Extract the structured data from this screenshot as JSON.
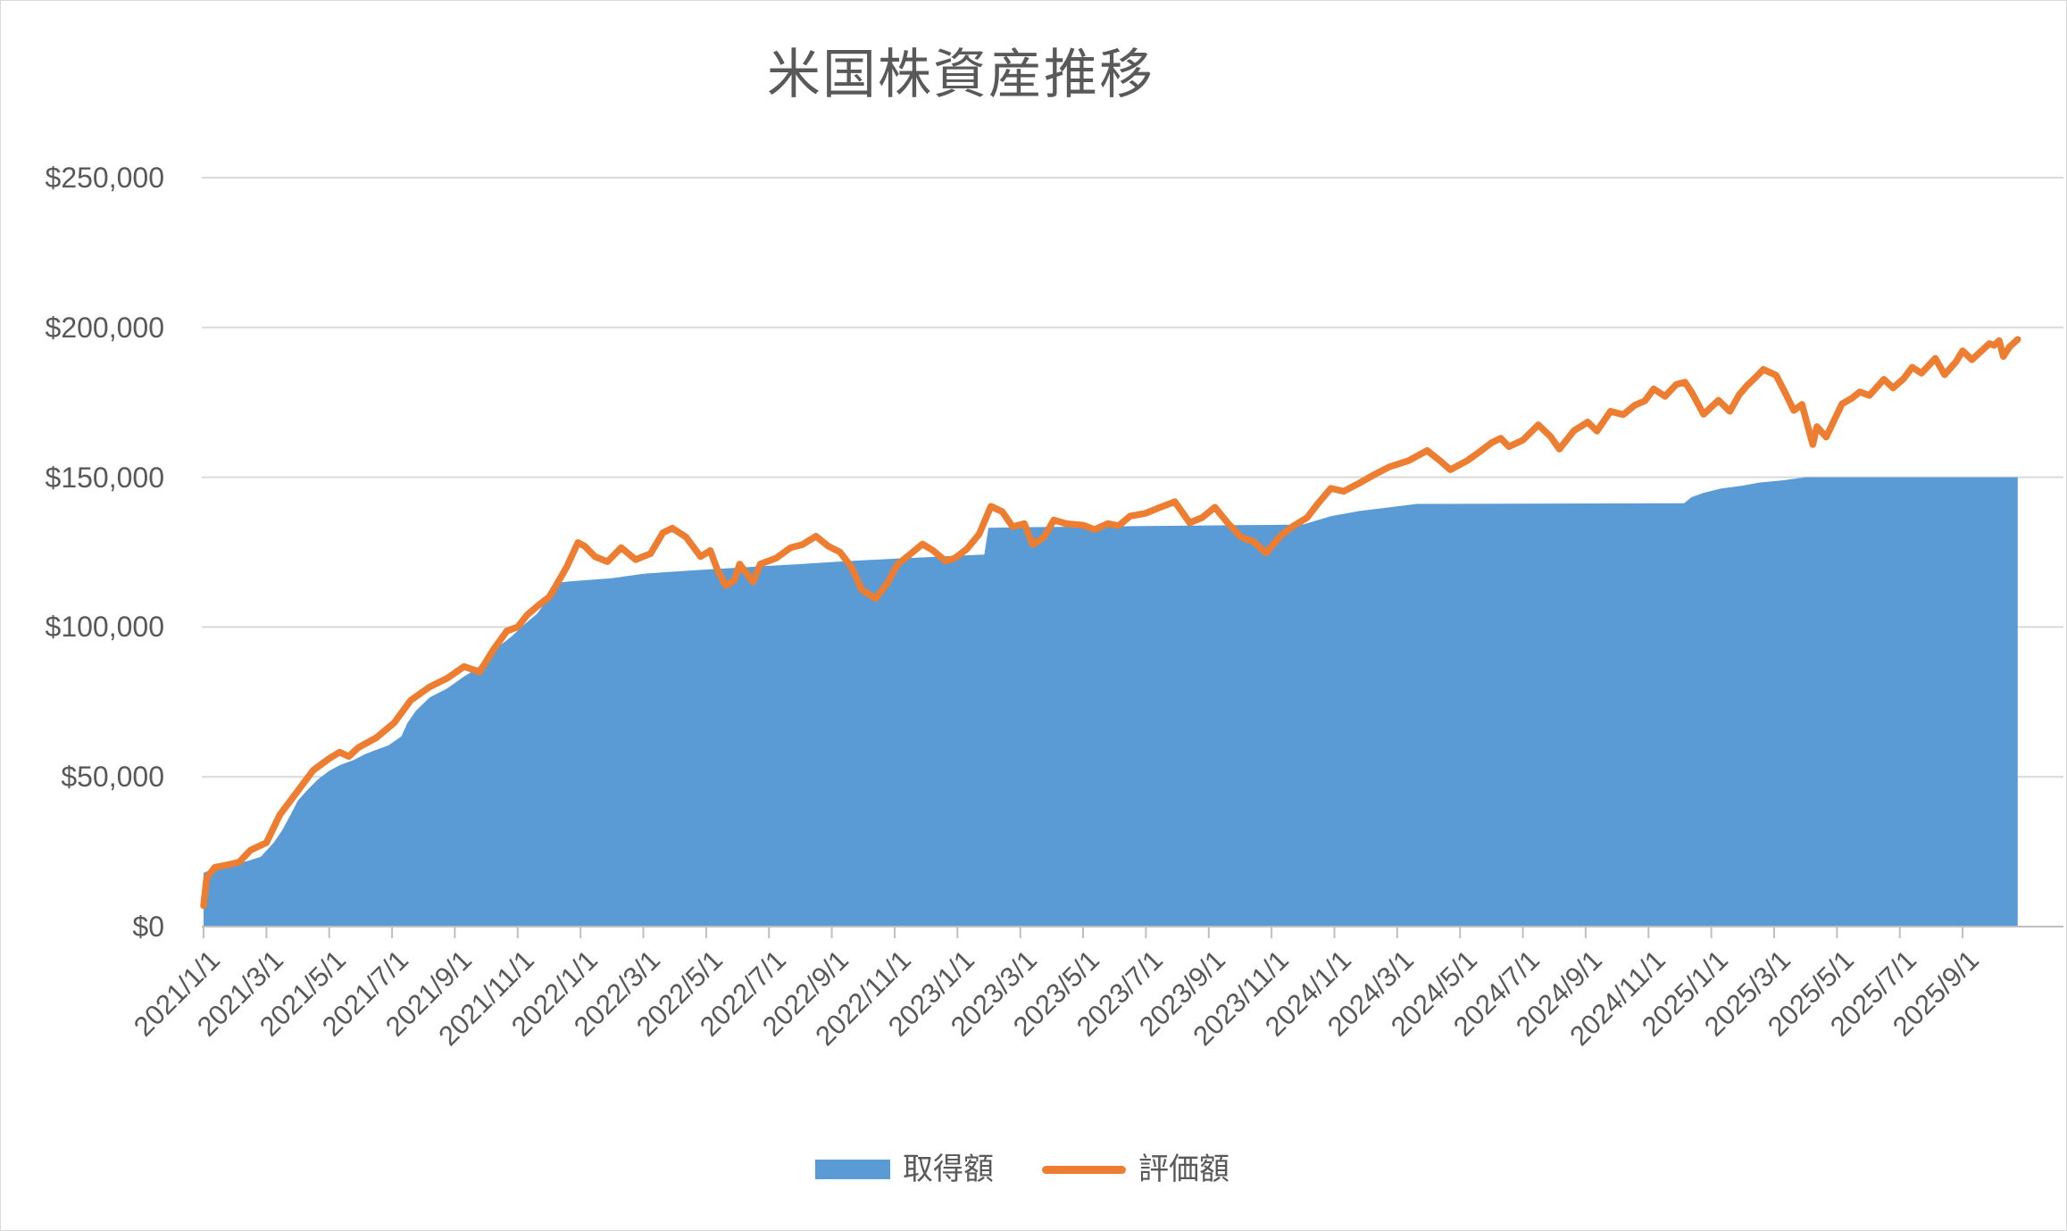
{
  "chart_data": {
    "type": "line",
    "title": "米国株資産推移",
    "grid": true,
    "legend_position": "bottom",
    "colors": {
      "area_series": "#5B9BD5",
      "line_series": "#ED7D31",
      "gridline": "#D9D9D9",
      "axis": "#BFBFBF",
      "text": "#595959",
      "border": "#D9D9D9"
    },
    "y_axis": {
      "min": 0,
      "max": 250000,
      "step": 50000,
      "format": "$#,##0",
      "ticks": [
        {
          "label": "$0",
          "value": 0
        },
        {
          "label": "$50,000",
          "value": 50000
        },
        {
          "label": "$100,000",
          "value": 100000
        },
        {
          "label": "$150,000",
          "value": 150000
        },
        {
          "label": "$200,000",
          "value": 200000
        },
        {
          "label": "$250,000",
          "value": 250000
        }
      ]
    },
    "x_axis": {
      "start": "2021/1/1",
      "end": "2025/10/24",
      "tick_labels": [
        "2021/1/1",
        "2021/3/1",
        "2021/5/1",
        "2021/7/1",
        "2021/9/1",
        "2021/11/1",
        "2022/1/1",
        "2022/3/1",
        "2022/5/1",
        "2022/7/1",
        "2022/9/1",
        "2022/11/1",
        "2023/1/1",
        "2023/3/1",
        "2023/5/1",
        "2023/7/1",
        "2023/9/1",
        "2023/11/1",
        "2024/1/1",
        "2024/3/1",
        "2024/5/1",
        "2024/7/1",
        "2024/9/1",
        "2024/11/1",
        "2025/1/1",
        "2025/3/1",
        "2025/5/1",
        "2025/7/1",
        "2025/9/1"
      ]
    },
    "series": [
      {
        "name": "取得額",
        "type": "area",
        "color": "#5B9BD5",
        "points": [
          [
            "2021/1/1",
            17900
          ],
          [
            "2021/1/8",
            19000
          ],
          [
            "2021/1/20",
            19800
          ],
          [
            "2021/2/1",
            20900
          ],
          [
            "2021/2/14",
            22000
          ],
          [
            "2021/2/26",
            23300
          ],
          [
            "2021/3/8",
            28000
          ],
          [
            "2021/3/16",
            32000
          ],
          [
            "2021/3/24",
            37000
          ],
          [
            "2021/4/1",
            42000
          ],
          [
            "2021/4/10",
            45500
          ],
          [
            "2021/4/20",
            49000
          ],
          [
            "2021/5/1",
            52000
          ],
          [
            "2021/5/12",
            54000
          ],
          [
            "2021/5/24",
            55500
          ],
          [
            "2021/6/5",
            57500
          ],
          [
            "2021/6/16",
            59000
          ],
          [
            "2021/6/28",
            60500
          ],
          [
            "2021/7/10",
            63500
          ],
          [
            "2021/7/16",
            68000
          ],
          [
            "2021/7/24",
            72000
          ],
          [
            "2021/8/7",
            76500
          ],
          [
            "2021/8/24",
            79500
          ],
          [
            "2021/9/10",
            83500
          ],
          [
            "2021/9/22",
            86000
          ],
          [
            "2021/10/4",
            91000
          ],
          [
            "2021/10/15",
            94000
          ],
          [
            "2021/10/26",
            97000
          ],
          [
            "2021/11/8",
            101000
          ],
          [
            "2021/11/20",
            104500
          ],
          [
            "2021/12/1",
            110000
          ],
          [
            "2021/12/10",
            114800
          ],
          [
            "2021/12/20",
            115200
          ],
          [
            "2022/2/1",
            116300
          ],
          [
            "2022/3/1",
            117800
          ],
          [
            "2022/4/1",
            118500
          ],
          [
            "2022/5/1",
            119200
          ],
          [
            "2022/6/1",
            119800
          ],
          [
            "2022/7/1",
            120400
          ],
          [
            "2022/8/1",
            121000
          ],
          [
            "2022/9/1",
            121700
          ],
          [
            "2022/10/1",
            122300
          ],
          [
            "2022/11/1",
            122800
          ],
          [
            "2022/12/1",
            123300
          ],
          [
            "2023/1/1",
            123800
          ],
          [
            "2023/1/27",
            124200
          ],
          [
            "2023/1/31",
            133100
          ],
          [
            "2023/3/1",
            133300
          ],
          [
            "2023/6/1",
            133600
          ],
          [
            "2023/9/1",
            133900
          ],
          [
            "2023/12/1",
            134200
          ],
          [
            "2023/12/28",
            137000
          ],
          [
            "2024/1/25",
            138700
          ],
          [
            "2024/3/1",
            140300
          ],
          [
            "2024/3/20",
            141100
          ],
          [
            "2024/12/5",
            141300
          ],
          [
            "2024/12/12",
            143300
          ],
          [
            "2024/12/24",
            144800
          ],
          [
            "2025/1/10",
            146200
          ],
          [
            "2025/2/1",
            147200
          ],
          [
            "2025/2/17",
            148200
          ],
          [
            "2025/3/10",
            149000
          ],
          [
            "2025/4/1",
            150000
          ],
          [
            "2025/10/24",
            150000
          ]
        ]
      },
      {
        "name": "評価額",
        "type": "line",
        "color": "#ED7D31",
        "stroke_width": 7.5,
        "points": [
          [
            "2021/1/1",
            7000
          ],
          [
            "2021/1/4",
            16300
          ],
          [
            "2021/1/12",
            19800
          ],
          [
            "2021/1/24",
            20600
          ],
          [
            "2021/2/5",
            21500
          ],
          [
            "2021/2/16",
            25500
          ],
          [
            "2021/3/1",
            28000
          ],
          [
            "2021/3/14",
            37300
          ],
          [
            "2021/3/29",
            44200
          ],
          [
            "2021/4/16",
            52200
          ],
          [
            "2021/5/1",
            56100
          ],
          [
            "2021/5/11",
            58200
          ],
          [
            "2021/5/20",
            56800
          ],
          [
            "2021/5/29",
            59700
          ],
          [
            "2021/6/16",
            63000
          ],
          [
            "2021/7/3",
            68000
          ],
          [
            "2021/7/19",
            75500
          ],
          [
            "2021/8/7",
            80000
          ],
          [
            "2021/8/24",
            82900
          ],
          [
            "2021/9/10",
            86800
          ],
          [
            "2021/9/25",
            85000
          ],
          [
            "2021/10/8",
            92500
          ],
          [
            "2021/10/21",
            98700
          ],
          [
            "2021/11/1",
            100000
          ],
          [
            "2021/11/10",
            104000
          ],
          [
            "2021/11/22",
            107500
          ],
          [
            "2021/12/1",
            110000
          ],
          [
            "2021/12/8",
            114000
          ],
          [
            "2021/12/18",
            120000
          ],
          [
            "2021/12/29",
            128200
          ],
          [
            "2022/1/5",
            127000
          ],
          [
            "2022/1/15",
            123500
          ],
          [
            "2022/1/27",
            121800
          ],
          [
            "2022/2/10",
            126500
          ],
          [
            "2022/2/24",
            122500
          ],
          [
            "2022/3/8",
            124500
          ],
          [
            "2022/3/20",
            131500
          ],
          [
            "2022/3/29",
            133000
          ],
          [
            "2022/4/12",
            130000
          ],
          [
            "2022/4/26",
            123500
          ],
          [
            "2022/5/5",
            125500
          ],
          [
            "2022/5/12",
            119000
          ],
          [
            "2022/5/20",
            113800
          ],
          [
            "2022/5/28",
            115500
          ],
          [
            "2022/6/3",
            121000
          ],
          [
            "2022/6/16",
            115000
          ],
          [
            "2022/6/23",
            121000
          ],
          [
            "2022/7/8",
            123000
          ],
          [
            "2022/7/22",
            126500
          ],
          [
            "2022/8/3",
            127500
          ],
          [
            "2022/8/16",
            130300
          ],
          [
            "2022/8/28",
            127000
          ],
          [
            "2022/9/9",
            125000
          ],
          [
            "2022/9/20",
            120000
          ],
          [
            "2022/9/30",
            112500
          ],
          [
            "2022/10/13",
            109500
          ],
          [
            "2022/10/25",
            115000
          ],
          [
            "2022/11/4",
            121000
          ],
          [
            "2022/11/15",
            124000
          ],
          [
            "2022/11/28",
            127700
          ],
          [
            "2022/12/8",
            125500
          ],
          [
            "2022/12/20",
            122000
          ],
          [
            "2022/12/29",
            123000
          ],
          [
            "2023/1/10",
            126000
          ],
          [
            "2023/1/22",
            131000
          ],
          [
            "2023/2/3",
            140300
          ],
          [
            "2023/2/14",
            138500
          ],
          [
            "2023/2/24",
            133500
          ],
          [
            "2023/3/5",
            134500
          ],
          [
            "2023/3/13",
            127500
          ],
          [
            "2023/3/24",
            130000
          ],
          [
            "2023/4/3",
            135700
          ],
          [
            "2023/4/15",
            134500
          ],
          [
            "2023/5/1",
            134000
          ],
          [
            "2023/5/12",
            132500
          ],
          [
            "2023/5/25",
            134500
          ],
          [
            "2023/6/5",
            133800
          ],
          [
            "2023/6/16",
            137000
          ],
          [
            "2023/7/1",
            138000
          ],
          [
            "2023/7/15",
            140000
          ],
          [
            "2023/7/29",
            141800
          ],
          [
            "2023/8/13",
            134800
          ],
          [
            "2023/8/25",
            136500
          ],
          [
            "2023/9/7",
            140000
          ],
          [
            "2023/9/20",
            134500
          ],
          [
            "2023/10/2",
            130000
          ],
          [
            "2023/10/14",
            128500
          ],
          [
            "2023/10/26",
            124700
          ],
          [
            "2023/11/10",
            130500
          ],
          [
            "2023/11/22",
            133700
          ],
          [
            "2023/12/5",
            136500
          ],
          [
            "2023/12/15",
            141000
          ],
          [
            "2023/12/28",
            146300
          ],
          [
            "2024/1/10",
            145300
          ],
          [
            "2024/1/25",
            148000
          ],
          [
            "2024/2/10",
            151000
          ],
          [
            "2024/2/24",
            153500
          ],
          [
            "2024/3/12",
            155500
          ],
          [
            "2024/3/30",
            158900
          ],
          [
            "2024/4/12",
            155500
          ],
          [
            "2024/4/22",
            152500
          ],
          [
            "2024/5/8",
            155500
          ],
          [
            "2024/5/20",
            158500
          ],
          [
            "2024/6/1",
            161500
          ],
          [
            "2024/6/10",
            163000
          ],
          [
            "2024/6/18",
            160200
          ],
          [
            "2024/7/1",
            162400
          ],
          [
            "2024/7/16",
            167500
          ],
          [
            "2024/7/28",
            163500
          ],
          [
            "2024/8/6",
            159400
          ],
          [
            "2024/8/20",
            165500
          ],
          [
            "2024/9/3",
            168400
          ],
          [
            "2024/9/12",
            165400
          ],
          [
            "2024/9/25",
            172000
          ],
          [
            "2024/10/7",
            170900
          ],
          [
            "2024/10/18",
            174000
          ],
          [
            "2024/10/28",
            175500
          ],
          [
            "2024/11/6",
            179500
          ],
          [
            "2024/11/17",
            177000
          ],
          [
            "2024/11/28",
            181000
          ],
          [
            "2024/12/6",
            181700
          ],
          [
            "2024/12/13",
            178000
          ],
          [
            "2024/12/24",
            171000
          ],
          [
            "2025/1/8",
            175700
          ],
          [
            "2025/1/19",
            172000
          ],
          [
            "2025/1/28",
            177500
          ],
          [
            "2025/2/5",
            180500
          ],
          [
            "2025/2/14",
            183500
          ],
          [
            "2025/2/21",
            186000
          ],
          [
            "2025/3/3",
            184000
          ],
          [
            "2025/3/12",
            178000
          ],
          [
            "2025/3/20",
            172300
          ],
          [
            "2025/3/28",
            174300
          ],
          [
            "2025/4/4",
            166000
          ],
          [
            "2025/4/8",
            160900
          ],
          [
            "2025/4/12",
            166900
          ],
          [
            "2025/4/21",
            163400
          ],
          [
            "2025/4/28",
            168500
          ],
          [
            "2025/5/6",
            174500
          ],
          [
            "2025/5/16",
            176500
          ],
          [
            "2025/5/23",
            178500
          ],
          [
            "2025/6/2",
            177300
          ],
          [
            "2025/6/16",
            182700
          ],
          [
            "2025/6/25",
            179800
          ],
          [
            "2025/7/5",
            183000
          ],
          [
            "2025/7/13",
            186700
          ],
          [
            "2025/7/22",
            184700
          ],
          [
            "2025/8/5",
            189700
          ],
          [
            "2025/8/14",
            184200
          ],
          [
            "2025/8/25",
            188500
          ],
          [
            "2025/9/1",
            192200
          ],
          [
            "2025/9/10",
            189200
          ],
          [
            "2025/9/27",
            194600
          ],
          [
            "2025/10/1",
            194000
          ],
          [
            "2025/10/6",
            195600
          ],
          [
            "2025/10/10",
            190300
          ],
          [
            "2025/10/16",
            193500
          ],
          [
            "2025/10/24",
            196000
          ]
        ]
      }
    ]
  }
}
